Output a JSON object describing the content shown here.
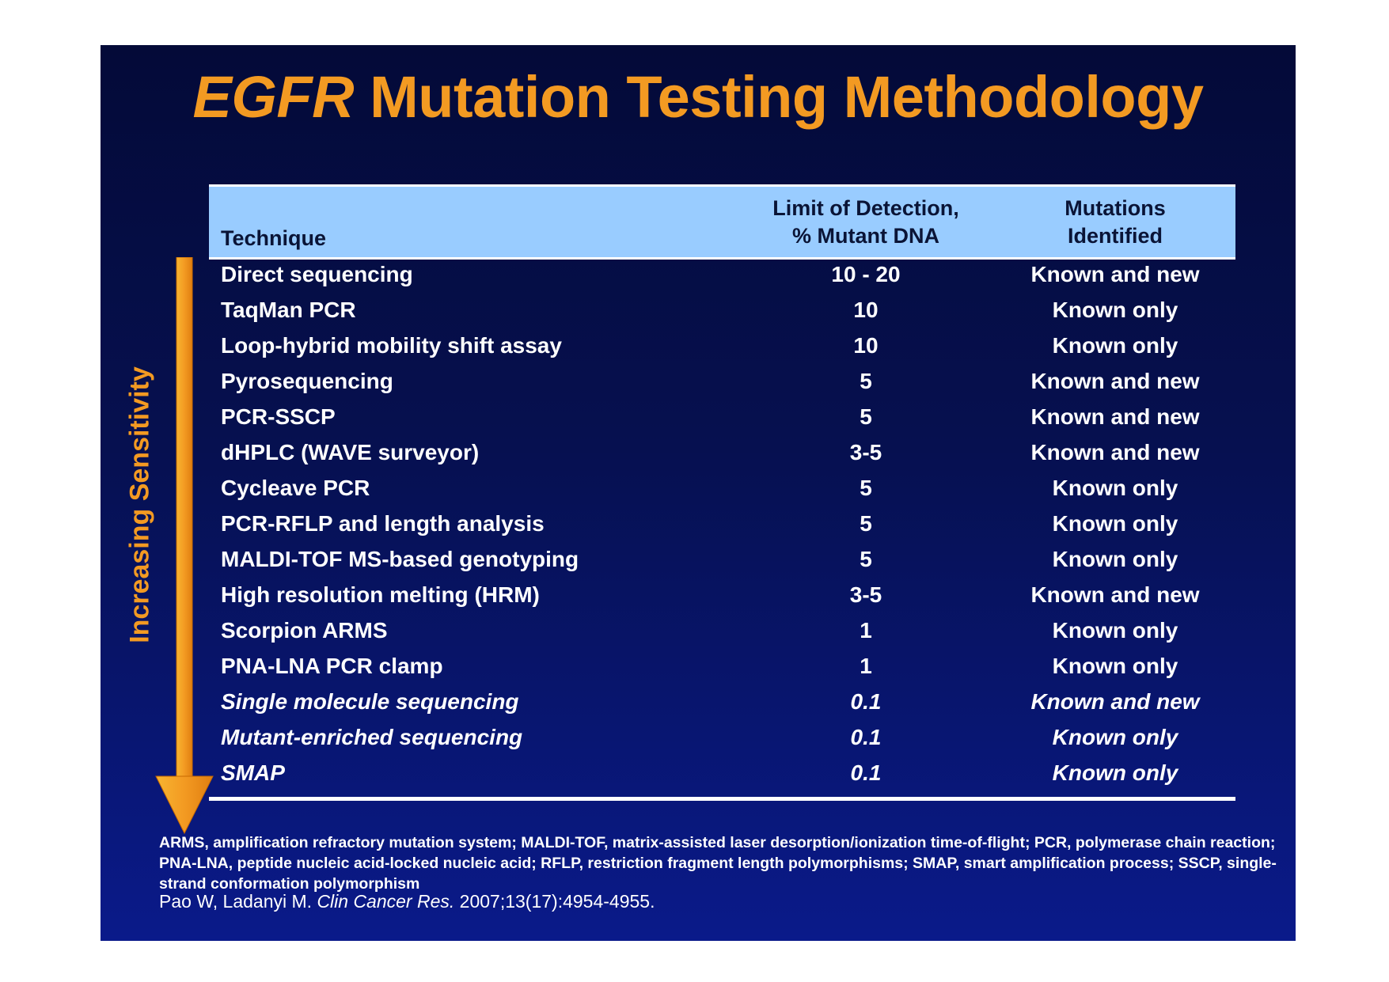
{
  "title": {
    "italic_part": "EGFR",
    "rest": "Mutation Testing Methodology"
  },
  "table": {
    "headers": {
      "technique": "Technique",
      "limit_line1": "Limit of Detection,",
      "limit_line2": "% Mutant DNA",
      "mutations_line1": "Mutations",
      "mutations_line2": "Identified"
    },
    "rows": [
      {
        "technique": "Direct sequencing",
        "limit": "10 - 20",
        "mutations": "Known and new"
      },
      {
        "technique": "TaqMan PCR",
        "limit": "10",
        "mutations": "Known only"
      },
      {
        "technique": "Loop-hybrid mobility shift assay",
        "limit": "10",
        "mutations": "Known only"
      },
      {
        "technique": "Pyrosequencing",
        "limit": "5",
        "mutations": "Known and new"
      },
      {
        "technique": "PCR-SSCP",
        "limit": "5",
        "mutations": "Known and new"
      },
      {
        "technique": "dHPLC (WAVE surveyor)",
        "limit": "3-5",
        "mutations": "Known and new"
      },
      {
        "technique": "Cycleave PCR",
        "limit": "5",
        "mutations": "Known only"
      },
      {
        "technique": "PCR-RFLP and length analysis",
        "limit": "5",
        "mutations": "Known only"
      },
      {
        "technique": "MALDI-TOF MS-based genotyping",
        "limit": "5",
        "mutations": "Known only"
      },
      {
        "technique": "High resolution melting (HRM)",
        "limit": "3-5",
        "mutations": "Known and new"
      },
      {
        "technique": "Scorpion ARMS",
        "limit": "1",
        "mutations": "Known only"
      },
      {
        "technique": "PNA-LNA PCR clamp",
        "limit": "1",
        "mutations": "Known only"
      },
      {
        "technique": "Single molecule sequencing",
        "limit": "0.1",
        "mutations": "Known and new"
      },
      {
        "technique": "Mutant-enriched sequencing",
        "limit": "0.1",
        "mutations": "Known only"
      },
      {
        "technique": "SMAP",
        "limit": "0.1",
        "mutations": "Known only"
      }
    ]
  },
  "side_label": "Increasing Sensitivity",
  "footnote": "ARMS, amplification refractory mutation system; MALDI-TOF, matrix-assisted laser desorption/ionization time-of-flight; PCR, polymerase chain reaction; PNA-LNA, peptide nucleic acid-locked nucleic acid; RFLP, restriction fragment length polymorphisms; SMAP, smart amplification process; SSCP, single-strand conformation polymorphism",
  "citation": {
    "authors": "Pao W, Ladanyi M.",
    "journal": "Clin Cancer Res.",
    "details": "2007;13(17):4954-4955."
  },
  "colors": {
    "accent": "#f39a22",
    "header_bg": "#99ccff",
    "slide_bg": "#061050"
  }
}
